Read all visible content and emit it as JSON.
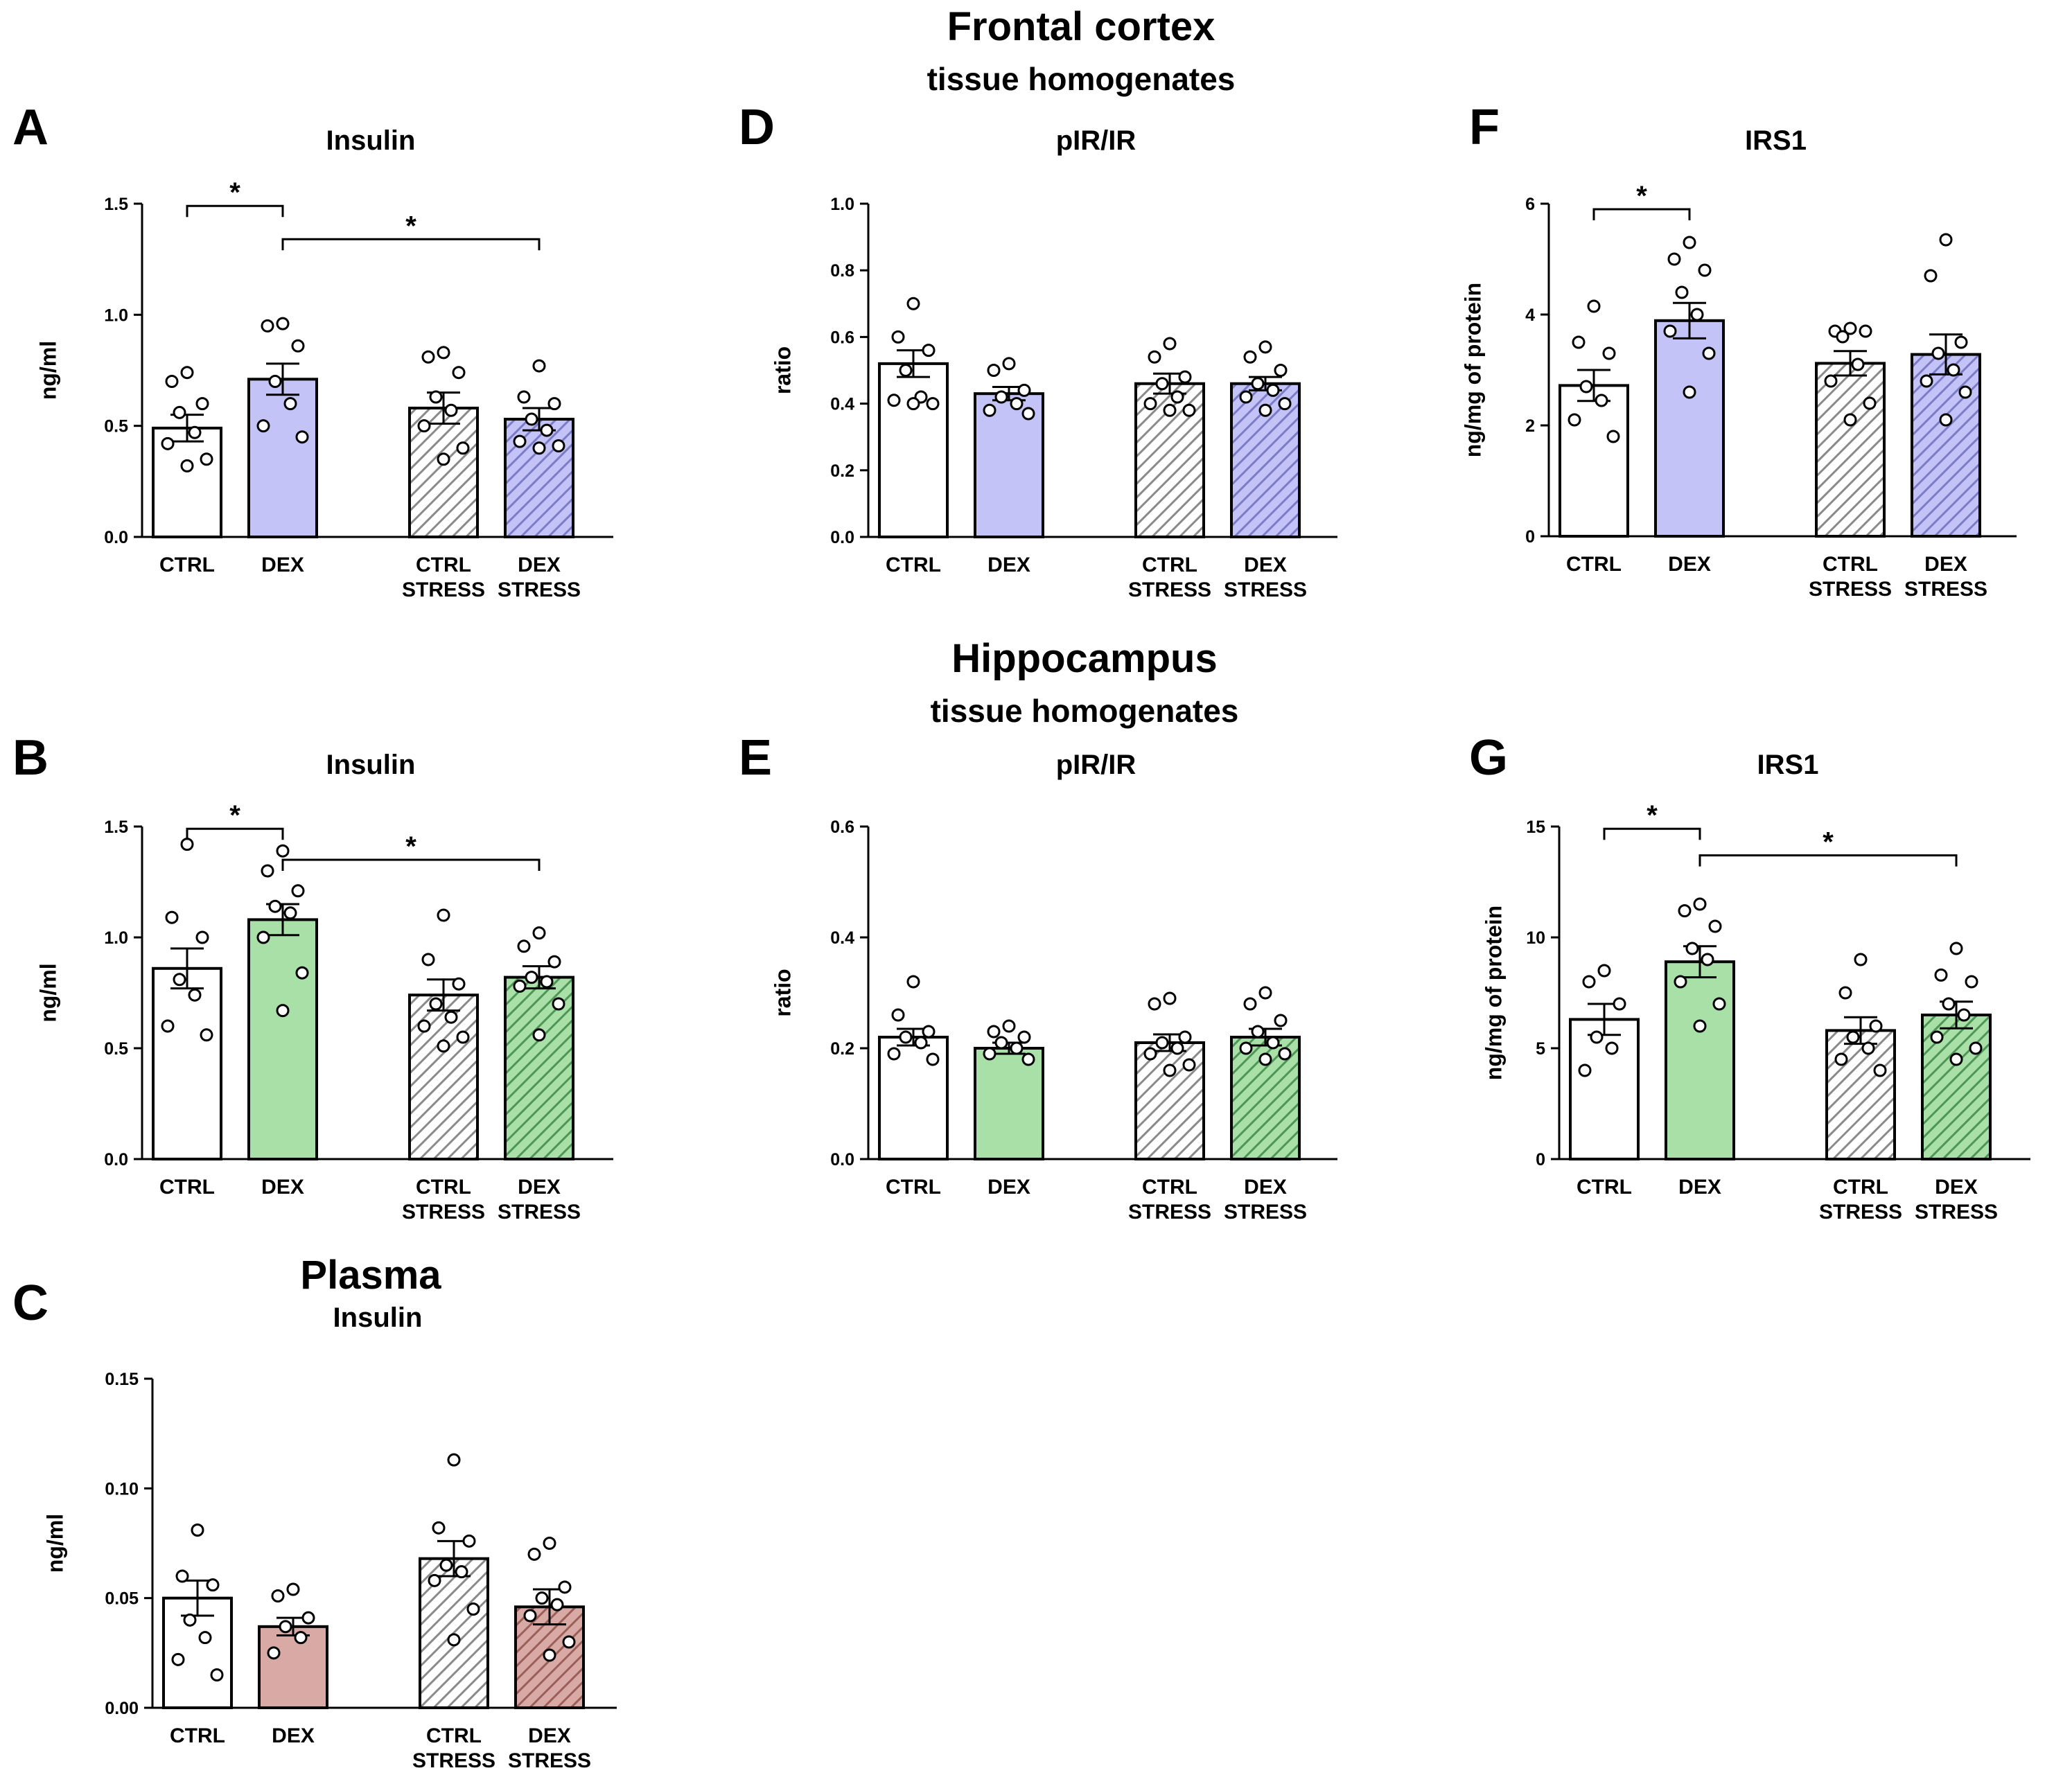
{
  "headings": {
    "frontal_title": "Frontal cortex",
    "frontal_sub": "tissue homogenates",
    "hippo_title": "Hippocampus",
    "hippo_sub": "tissue homogenates",
    "plasma_title": "Plasma"
  },
  "colors": {
    "blue": "#c3c3f7",
    "blue_hatch": "#8c8cd2",
    "green": "#a8e0a8",
    "green_hatch": "#5fa366",
    "rose": "#d9aaa5",
    "rose_hatch": "#a86c66",
    "white": "#ffffff",
    "grey_hatch": "#9a9a9a"
  },
  "chart_data": [
    {
      "id": "A",
      "panel_letter": "A",
      "type": "bar",
      "title": "Insulin",
      "ylabel": "ng/ml",
      "ylim": [
        0,
        1.5
      ],
      "yticks": [
        "0.0",
        "0.5",
        "1.0",
        "1.5"
      ],
      "ytick_values": [
        0,
        0.5,
        1.0,
        1.5
      ],
      "categories": [
        [
          "CTRL"
        ],
        [
          "DEX"
        ],
        [
          "CTRL",
          "STRESS"
        ],
        [
          "DEX",
          "STRESS"
        ]
      ],
      "values": [
        0.49,
        0.71,
        0.58,
        0.53
      ],
      "sem": [
        0.06,
        0.07,
        0.07,
        0.05
      ],
      "points": [
        [
          0.74,
          0.7,
          0.6,
          0.56,
          0.47,
          0.42,
          0.35,
          0.32
        ],
        [
          0.96,
          0.95,
          0.86,
          0.7,
          0.6,
          0.5,
          0.45
        ],
        [
          0.83,
          0.81,
          0.74,
          0.63,
          0.57,
          0.5,
          0.4,
          0.35
        ],
        [
          0.77,
          0.63,
          0.6,
          0.53,
          0.48,
          0.43,
          0.41,
          0.4
        ]
      ],
      "color": "blue",
      "significance": [
        {
          "from": 0,
          "to": 1,
          "label": "*",
          "y": 1.49
        },
        {
          "from": 1,
          "to": 3,
          "label": "*",
          "y": 1.34
        }
      ]
    },
    {
      "id": "D",
      "panel_letter": "D",
      "type": "bar",
      "title": "pIR/IR",
      "ylabel": "ratio",
      "ylim": [
        0,
        1.0
      ],
      "yticks": [
        "0.0",
        "0.2",
        "0.4",
        "0.6",
        "0.8",
        "1.0"
      ],
      "ytick_values": [
        0,
        0.2,
        0.4,
        0.6,
        0.8,
        1.0
      ],
      "categories": [
        [
          "CTRL"
        ],
        [
          "DEX"
        ],
        [
          "CTRL",
          "STRESS"
        ],
        [
          "DEX",
          "STRESS"
        ]
      ],
      "values": [
        0.52,
        0.43,
        0.46,
        0.46
      ],
      "sem": [
        0.04,
        0.02,
        0.03,
        0.02
      ],
      "points": [
        [
          0.7,
          0.6,
          0.56,
          0.5,
          0.42,
          0.41,
          0.4,
          0.4
        ],
        [
          0.52,
          0.5,
          0.44,
          0.42,
          0.4,
          0.38,
          0.37
        ],
        [
          0.58,
          0.54,
          0.48,
          0.46,
          0.42,
          0.4,
          0.38,
          0.38
        ],
        [
          0.57,
          0.54,
          0.5,
          0.46,
          0.44,
          0.42,
          0.4,
          0.38
        ]
      ],
      "color": "blue",
      "significance": []
    },
    {
      "id": "F",
      "panel_letter": "F",
      "type": "bar",
      "title": "IRS1",
      "ylabel": "ng/mg of protein",
      "ylim": [
        0,
        6
      ],
      "yticks": [
        "0",
        "2",
        "4",
        "6"
      ],
      "ytick_values": [
        0,
        2,
        4,
        6
      ],
      "categories": [
        [
          "CTRL"
        ],
        [
          "DEX"
        ],
        [
          "CTRL",
          "STRESS"
        ],
        [
          "DEX",
          "STRESS"
        ]
      ],
      "values": [
        2.72,
        3.89,
        3.12,
        3.28
      ],
      "sem": [
        0.28,
        0.32,
        0.22,
        0.36
      ],
      "points": [
        [
          4.15,
          3.5,
          3.3,
          2.7,
          2.45,
          2.1,
          1.8
        ],
        [
          5.3,
          5.0,
          4.8,
          4.4,
          4.0,
          3.7,
          3.3,
          2.6
        ],
        [
          3.75,
          3.7,
          3.7,
          3.6,
          3.1,
          2.8,
          2.4,
          2.1
        ],
        [
          5.35,
          4.7,
          3.5,
          3.3,
          3.0,
          2.8,
          2.6,
          2.1
        ]
      ],
      "color": "blue",
      "significance": [
        {
          "from": 0,
          "to": 1,
          "label": "*",
          "y": 5.9
        }
      ]
    },
    {
      "id": "B",
      "panel_letter": "B",
      "type": "bar",
      "title": "Insulin",
      "ylabel": "ng/ml",
      "ylim": [
        0,
        1.5
      ],
      "yticks": [
        "0.0",
        "0.5",
        "1.0",
        "1.5"
      ],
      "ytick_values": [
        0,
        0.5,
        1.0,
        1.5
      ],
      "categories": [
        [
          "CTRL"
        ],
        [
          "DEX"
        ],
        [
          "CTRL",
          "STRESS"
        ],
        [
          "DEX",
          "STRESS"
        ]
      ],
      "values": [
        0.86,
        1.08,
        0.74,
        0.82
      ],
      "sem": [
        0.09,
        0.07,
        0.07,
        0.05
      ],
      "points": [
        [
          1.42,
          1.09,
          1.0,
          0.81,
          0.74,
          0.6,
          0.56
        ],
        [
          1.39,
          1.3,
          1.21,
          1.14,
          1.11,
          1.0,
          0.84,
          0.67
        ],
        [
          1.1,
          0.9,
          0.79,
          0.7,
          0.64,
          0.6,
          0.55,
          0.51
        ],
        [
          1.02,
          0.96,
          0.89,
          0.82,
          0.8,
          0.78,
          0.7,
          0.56
        ]
      ],
      "color": "green",
      "significance": [
        {
          "from": 0,
          "to": 1,
          "label": "*",
          "y": 1.49
        },
        {
          "from": 1,
          "to": 3,
          "label": "*",
          "y": 1.35
        }
      ]
    },
    {
      "id": "E",
      "panel_letter": "E",
      "type": "bar",
      "title": "pIR/IR",
      "ylabel": "ratio",
      "ylim": [
        0,
        0.6
      ],
      "yticks": [
        "0.0",
        "0.2",
        "0.4",
        "0.6"
      ],
      "ytick_values": [
        0,
        0.2,
        0.4,
        0.6
      ],
      "categories": [
        [
          "CTRL"
        ],
        [
          "DEX"
        ],
        [
          "CTRL",
          "STRESS"
        ],
        [
          "DEX",
          "STRESS"
        ]
      ],
      "values": [
        0.22,
        0.2,
        0.21,
        0.22
      ],
      "sem": [
        0.015,
        0.01,
        0.015,
        0.015
      ],
      "points": [
        [
          0.32,
          0.26,
          0.23,
          0.22,
          0.21,
          0.19,
          0.18
        ],
        [
          0.24,
          0.23,
          0.22,
          0.21,
          0.2,
          0.19,
          0.18
        ],
        [
          0.29,
          0.28,
          0.22,
          0.21,
          0.2,
          0.19,
          0.17,
          0.16
        ],
        [
          0.3,
          0.28,
          0.25,
          0.23,
          0.21,
          0.2,
          0.19,
          0.18
        ]
      ],
      "color": "green",
      "significance": []
    },
    {
      "id": "G",
      "panel_letter": "G",
      "type": "bar",
      "title": "IRS1",
      "ylabel": "ng/mg of protein",
      "ylim": [
        0,
        15
      ],
      "yticks": [
        "0",
        "5",
        "10",
        "15"
      ],
      "ytick_values": [
        0,
        5,
        10,
        15
      ],
      "categories": [
        [
          "CTRL"
        ],
        [
          "DEX"
        ],
        [
          "CTRL",
          "STRESS"
        ],
        [
          "DEX",
          "STRESS"
        ]
      ],
      "values": [
        6.3,
        8.9,
        5.8,
        6.5
      ],
      "sem": [
        0.7,
        0.7,
        0.6,
        0.6
      ],
      "points": [
        [
          8.5,
          8.0,
          7.0,
          5.5,
          5.0,
          4.0
        ],
        [
          11.5,
          11.2,
          10.5,
          9.5,
          9.0,
          8.0,
          7.0,
          6.0
        ],
        [
          9.0,
          7.5,
          6.0,
          5.5,
          5.0,
          4.5,
          4.0
        ],
        [
          9.5,
          8.3,
          8.0,
          7.0,
          6.5,
          5.5,
          5.0,
          4.5
        ]
      ],
      "color": "green",
      "significance": [
        {
          "from": 0,
          "to": 1,
          "label": "*",
          "y": 14.9
        },
        {
          "from": 1,
          "to": 3,
          "label": "*",
          "y": 13.7
        }
      ]
    },
    {
      "id": "C",
      "panel_letter": "C",
      "type": "bar",
      "title": "Insulin",
      "ylabel": "ng/ml",
      "ylim": [
        0,
        0.15
      ],
      "yticks": [
        "0.00",
        "0.05",
        "0.10",
        "0.15"
      ],
      "ytick_values": [
        0,
        0.05,
        0.1,
        0.15
      ],
      "categories": [
        [
          "CTRL"
        ],
        [
          "DEX"
        ],
        [
          "CTRL",
          "STRESS"
        ],
        [
          "DEX",
          "STRESS"
        ]
      ],
      "values": [
        0.05,
        0.037,
        0.068,
        0.046
      ],
      "sem": [
        0.008,
        0.004,
        0.008,
        0.008
      ],
      "points": [
        [
          0.081,
          0.06,
          0.056,
          0.04,
          0.032,
          0.022,
          0.015
        ],
        [
          0.054,
          0.051,
          0.041,
          0.037,
          0.032,
          0.025
        ],
        [
          0.113,
          0.082,
          0.076,
          0.065,
          0.062,
          0.058,
          0.045,
          0.031
        ],
        [
          0.075,
          0.07,
          0.055,
          0.05,
          0.047,
          0.042,
          0.03,
          0.024
        ]
      ],
      "color": "rose",
      "significance": []
    }
  ]
}
